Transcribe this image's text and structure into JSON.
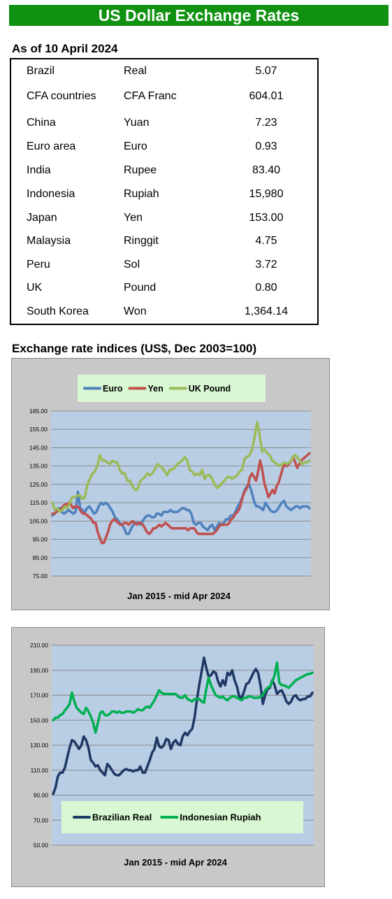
{
  "header": {
    "title": "US Dollar Exchange Rates"
  },
  "rates": {
    "title": "As of 10 April 2024",
    "rows": [
      {
        "country": "Brazil",
        "currency": "Real",
        "value": "5.07"
      },
      {
        "country": "CFA countries",
        "currency": "CFA Franc",
        "value": "604.01"
      },
      {
        "country": "China",
        "currency": "Yuan",
        "value": "7.23"
      },
      {
        "country": "Euro area",
        "currency": "Euro",
        "value": "0.93"
      },
      {
        "country": "India",
        "currency": "Rupee",
        "value": "83.40"
      },
      {
        "country": "Indonesia",
        "currency": "Rupiah",
        "value": "15,980"
      },
      {
        "country": "Japan",
        "currency": "Yen",
        "value": "153.00"
      },
      {
        "country": "Malaysia",
        "currency": "Ringgit",
        "value": "4.75"
      },
      {
        "country": "Peru",
        "currency": "Sol",
        "value": "3.72"
      },
      {
        "country": "UK",
        "currency": "Pound",
        "value": "0.80"
      },
      {
        "country": "South Korea",
        "currency": "Won",
        "value": "1,364.14"
      }
    ]
  },
  "indices_title": "Exchange rate indices (US$, Dec 2003=100)",
  "chart_data": [
    {
      "type": "line",
      "title": "",
      "xlabel": "Jan 2015 - mid Apr 2024",
      "ylabel": "",
      "ylim": [
        75,
        165
      ],
      "yticks": [
        "75.00",
        "85.00",
        "95.00",
        "105.00",
        "115.00",
        "125.00",
        "135.00",
        "145.00",
        "155.00",
        "165.00"
      ],
      "grid": true,
      "legend": "top-center",
      "series": [
        {
          "name": "Euro",
          "color": "#4f81bd",
          "values": [
            108,
            109,
            111,
            112,
            110,
            109,
            110,
            111,
            110,
            109,
            110,
            121,
            112,
            111,
            110,
            112,
            113,
            111,
            109,
            110,
            113,
            115,
            114,
            115,
            114,
            112,
            110,
            107,
            106,
            104,
            103,
            101,
            98,
            98,
            101,
            103,
            104,
            104,
            103,
            105,
            107,
            108,
            108,
            107,
            107,
            109,
            109,
            108,
            110,
            110,
            110,
            111,
            110,
            110,
            110,
            111,
            112,
            112,
            111,
            111,
            109,
            104,
            103,
            104,
            104,
            102,
            101,
            100,
            102,
            103,
            100,
            102,
            104,
            103,
            104,
            106,
            106,
            108,
            108,
            110,
            113,
            115,
            118,
            122,
            124,
            125,
            121,
            116,
            113,
            113,
            112,
            111,
            115,
            113,
            111,
            110,
            110,
            111,
            113,
            115,
            116,
            113,
            112,
            111,
            112,
            113,
            113,
            112,
            113,
            113,
            113,
            112
          ]
        },
        {
          "name": "Yen",
          "color": "#c0504d",
          "values": [
            109,
            109,
            110,
            111,
            111,
            113,
            114,
            114,
            115,
            114,
            112,
            113,
            113,
            112,
            110,
            109,
            109,
            108,
            107,
            106,
            104,
            104,
            99,
            96,
            93,
            93,
            96,
            99,
            103,
            105,
            106,
            105,
            104,
            103,
            103,
            104,
            104,
            103,
            104,
            105,
            104,
            103,
            104,
            104,
            103,
            101,
            99,
            98,
            99,
            101,
            101,
            102,
            103,
            102,
            103,
            104,
            103,
            102,
            101,
            101,
            101,
            101,
            101,
            101,
            101,
            101,
            100,
            101,
            101,
            101,
            99,
            98,
            98,
            98,
            98,
            98,
            98,
            98,
            98,
            99,
            100,
            102,
            103,
            103,
            103,
            103,
            104,
            106,
            107,
            109,
            110,
            112,
            116,
            120,
            122,
            124,
            129,
            131,
            129,
            127,
            132,
            138,
            133,
            126,
            122,
            118,
            120,
            122,
            120,
            124,
            126,
            130,
            134,
            136,
            135,
            136,
            138,
            140,
            137,
            134,
            136,
            138,
            139,
            140,
            141,
            142
          ]
        },
        {
          "name": "UK Pound",
          "color": "#9bbb59",
          "values": [
            115,
            111,
            112,
            110,
            111,
            113,
            112,
            115,
            118,
            118,
            119,
            119,
            117,
            118,
            125,
            128,
            131,
            132,
            135,
            141,
            138,
            138,
            137,
            136,
            138,
            137,
            137,
            133,
            131,
            131,
            127,
            127,
            124,
            122,
            122,
            126,
            128,
            129,
            131,
            130,
            131,
            133,
            136,
            135,
            134,
            132,
            130,
            133,
            133,
            134,
            136,
            137,
            138,
            140,
            138,
            133,
            132,
            130,
            131,
            130,
            133,
            128,
            130,
            130,
            128,
            125,
            123,
            124,
            126,
            127,
            129,
            129,
            128,
            129,
            130,
            132,
            133,
            139,
            140,
            141,
            144,
            151,
            159,
            152,
            143,
            144,
            142,
            141,
            138,
            137,
            136,
            135,
            136,
            137,
            136,
            137,
            139,
            141,
            140,
            138,
            136,
            137,
            137,
            138
          ]
        }
      ]
    },
    {
      "type": "line",
      "title": "",
      "xlabel": "Jan 2015 - mid Apr 2024",
      "ylabel": "",
      "ylim": [
        50,
        210
      ],
      "yticks": [
        "50.00",
        "70.00",
        "90.00",
        "110.00",
        "130.00",
        "150.00",
        "170.00",
        "190.00",
        "210.00"
      ],
      "grid": true,
      "legend": "bottom-center",
      "series": [
        {
          "name": "Brazilian Real",
          "color": "#1f3864",
          "values": [
            91,
            96,
            105,
            108,
            108,
            112,
            120,
            128,
            134,
            133,
            130,
            127,
            130,
            137,
            134,
            128,
            118,
            116,
            113,
            114,
            110,
            108,
            106,
            115,
            113,
            110,
            107,
            106,
            106,
            108,
            110,
            111,
            110,
            110,
            109,
            110,
            110,
            113,
            108,
            108,
            113,
            118,
            124,
            127,
            136,
            129,
            128,
            130,
            135,
            134,
            127,
            132,
            134,
            131,
            130,
            137,
            140,
            138,
            141,
            143,
            152,
            166,
            178,
            189,
            200,
            192,
            185,
            186,
            189,
            188,
            181,
            177,
            182,
            178,
            188,
            186,
            190,
            182,
            177,
            169,
            168,
            173,
            179,
            180,
            184,
            188,
            191,
            188,
            178,
            163,
            170,
            175,
            176,
            182,
            178,
            171,
            173,
            174,
            170,
            165,
            163,
            165,
            169,
            170,
            167,
            166,
            167,
            167,
            169,
            169,
            172
          ]
        },
        {
          "name": "Indonesian Rupiah",
          "color": "#00b050",
          "values": [
            150,
            152,
            152,
            154,
            155,
            158,
            160,
            163,
            172,
            165,
            160,
            158,
            156,
            155,
            160,
            157,
            153,
            148,
            140,
            148,
            156,
            157,
            154,
            154,
            155,
            157,
            157,
            156,
            157,
            156,
            156,
            157,
            157,
            157,
            156,
            157,
            159,
            158,
            158,
            160,
            161,
            160,
            163,
            166,
            170,
            174,
            172,
            171,
            171,
            171,
            171,
            171,
            171,
            169,
            168,
            168,
            170,
            167,
            166,
            165,
            167,
            167,
            167,
            165,
            164,
            175,
            184,
            178,
            174,
            170,
            169,
            168,
            169,
            167,
            166,
            168,
            169,
            169,
            168,
            167,
            166,
            168,
            168,
            169,
            169,
            168,
            168,
            168,
            169,
            170,
            174,
            176,
            177,
            181,
            186,
            196,
            180,
            178,
            178,
            177,
            176,
            178,
            180,
            182,
            183,
            184,
            185,
            186,
            187,
            187,
            188
          ]
        }
      ]
    }
  ]
}
